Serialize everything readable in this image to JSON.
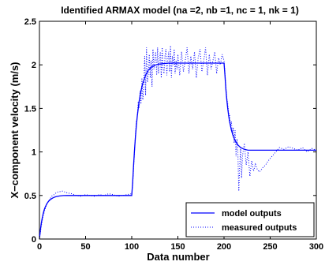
{
  "chart_data": {
    "type": "line",
    "title": "Identified ARMAX model (na =2, nb =1, nc = 1, nk = 1)",
    "xlabel": "Data number",
    "ylabel": "X−component velocity (m/s)",
    "xlim": [
      0,
      300
    ],
    "ylim": [
      0,
      2.5
    ],
    "xticks": [
      0,
      50,
      100,
      150,
      200,
      250,
      300
    ],
    "yticks": [
      0,
      0.5,
      1,
      1.5,
      2,
      2.5
    ],
    "xtick_labels": [
      "0",
      "50",
      "100",
      "150",
      "200",
      "250",
      "300"
    ],
    "ytick_labels": [
      "0",
      "0.5",
      "1",
      "1.5",
      "2",
      "2.5"
    ],
    "grid": false,
    "legend_position": "bottom-right",
    "series": [
      {
        "name": "model outputs",
        "color": "#0000ff",
        "style": "solid",
        "x": [
          0,
          1,
          2,
          3,
          4,
          5,
          6,
          8,
          10,
          12,
          15,
          18,
          22,
          26,
          30,
          40,
          50,
          60,
          70,
          80,
          90,
          100,
          101,
          102,
          103,
          104,
          105,
          106,
          108,
          110,
          112,
          115,
          118,
          122,
          126,
          130,
          140,
          150,
          160,
          170,
          180,
          190,
          200,
          201,
          202,
          203,
          204,
          205,
          206,
          208,
          210,
          212,
          215,
          218,
          222,
          226,
          230,
          240,
          250,
          260,
          270,
          280,
          290,
          300
        ],
        "values": [
          0.0,
          0.1,
          0.18,
          0.24,
          0.29,
          0.33,
          0.36,
          0.405,
          0.435,
          0.455,
          0.475,
          0.487,
          0.495,
          0.499,
          0.5,
          0.5,
          0.5,
          0.5,
          0.5,
          0.5,
          0.5,
          0.5,
          0.65,
          0.85,
          1.02,
          1.17,
          1.3,
          1.41,
          1.58,
          1.7,
          1.79,
          1.88,
          1.94,
          1.98,
          2.0,
          2.01,
          2.02,
          2.02,
          2.02,
          2.02,
          2.02,
          2.02,
          2.02,
          1.88,
          1.72,
          1.6,
          1.5,
          1.42,
          1.35,
          1.25,
          1.18,
          1.13,
          1.08,
          1.05,
          1.03,
          1.02,
          1.02,
          1.02,
          1.02,
          1.02,
          1.02,
          1.02,
          1.02,
          1.02
        ]
      },
      {
        "name": "measured outputs",
        "color": "#0000ff",
        "style": "dotted",
        "x": [
          0,
          2,
          4,
          6,
          8,
          10,
          12,
          14,
          16,
          18,
          20,
          25,
          30,
          35,
          40,
          45,
          50,
          55,
          60,
          65,
          70,
          75,
          80,
          85,
          90,
          95,
          100,
          101,
          102,
          103,
          104,
          105,
          106,
          107,
          108,
          109,
          110,
          111,
          112,
          113,
          114,
          115,
          116,
          117,
          118,
          119,
          120,
          121,
          122,
          123,
          124,
          125,
          126,
          127,
          128,
          129,
          130,
          131,
          132,
          133,
          134,
          135,
          136,
          137,
          138,
          139,
          140,
          141,
          142,
          143,
          144,
          145,
          146,
          147,
          148,
          149,
          150,
          152,
          154,
          156,
          158,
          160,
          162,
          164,
          166,
          168,
          170,
          172,
          174,
          176,
          178,
          180,
          182,
          184,
          186,
          188,
          190,
          192,
          194,
          196,
          198,
          200,
          201,
          202,
          203,
          204,
          205,
          206,
          207,
          208,
          209,
          210,
          211,
          212,
          213,
          214,
          215,
          216,
          217,
          218,
          219,
          220,
          222,
          224,
          226,
          228,
          230,
          232,
          234,
          236,
          238,
          240,
          242,
          245,
          248,
          252,
          256,
          260,
          265,
          270,
          275,
          280,
          285,
          290,
          295,
          300
        ],
        "values": [
          0.0,
          0.15,
          0.26,
          0.34,
          0.4,
          0.44,
          0.47,
          0.5,
          0.51,
          0.53,
          0.54,
          0.55,
          0.53,
          0.52,
          0.5,
          0.49,
          0.51,
          0.5,
          0.49,
          0.51,
          0.5,
          0.52,
          0.51,
          0.49,
          0.5,
          0.51,
          0.52,
          0.62,
          0.8,
          1.0,
          1.2,
          1.35,
          1.4,
          1.58,
          1.5,
          1.7,
          1.55,
          1.85,
          1.6,
          1.75,
          2.1,
          1.65,
          2.2,
          1.8,
          1.9,
          2.12,
          1.85,
          2.05,
          1.75,
          2.18,
          1.95,
          2.08,
          2.15,
          1.88,
          2.2,
          1.9,
          2.05,
          2.15,
          1.85,
          2.2,
          1.95,
          1.9,
          2.1,
          2.18,
          1.88,
          2.05,
          2.15,
          1.92,
          2.22,
          1.85,
          2.1,
          2.0,
          2.18,
          1.9,
          2.05,
          1.95,
          2.12,
          1.88,
          2.15,
          1.92,
          2.05,
          2.2,
          1.9,
          2.1,
          1.95,
          2.15,
          1.85,
          2.08,
          2.18,
          1.92,
          2.05,
          2.2,
          1.88,
          2.12,
          1.95,
          2.05,
          2.15,
          1.9,
          2.08,
          2.0,
          2.12,
          2.05,
          1.92,
          1.75,
          1.62,
          1.55,
          1.45,
          1.42,
          1.3,
          1.35,
          1.2,
          1.28,
          1.1,
          1.25,
          0.95,
          1.15,
          1.0,
          0.55,
          0.85,
          1.05,
          0.7,
          0.95,
          1.1,
          0.85,
          1.0,
          0.72,
          0.9,
          0.78,
          0.86,
          0.8,
          0.77,
          0.79,
          0.82,
          0.85,
          0.9,
          0.95,
          1.0,
          1.05,
          1.03,
          1.06,
          1.04,
          1.02,
          1.05,
          1.0,
          1.04,
          1.02
        ]
      }
    ]
  }
}
